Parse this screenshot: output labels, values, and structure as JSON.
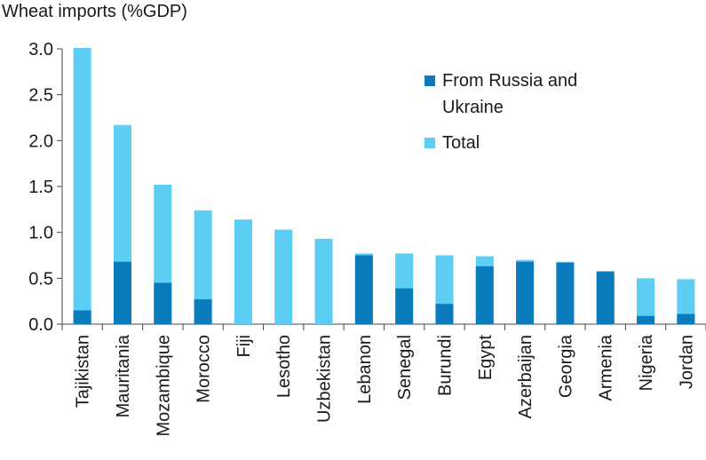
{
  "chart_data": {
    "type": "bar",
    "title": "Wheat imports (%GDP)",
    "categories": [
      "Tajikistan",
      "Mauritania",
      "Mozambique",
      "Morocco",
      "Fiji",
      "Lesotho",
      "Uzbekistan",
      "Lebanon",
      "Senegal",
      "Burundi",
      "Egypt",
      "Azerbaijan",
      "Georgia",
      "Armenia",
      "Nigeria",
      "Jordan"
    ],
    "series": [
      {
        "name": "From Russia and Ukraine",
        "color": "#0a7bbd",
        "values": [
          0.15,
          0.68,
          0.45,
          0.27,
          0.0,
          0.0,
          0.0,
          0.75,
          0.39,
          0.22,
          0.63,
          0.68,
          0.67,
          0.57,
          0.09,
          0.11
        ]
      },
      {
        "name": "Total",
        "color": "#5ccdf3",
        "values": [
          3.01,
          2.17,
          1.52,
          1.24,
          1.14,
          1.03,
          0.93,
          0.77,
          0.77,
          0.75,
          0.74,
          0.7,
          0.68,
          0.58,
          0.5,
          0.49
        ]
      }
    ],
    "ylim": [
      0,
      3.0
    ],
    "yticks": [
      "0.0",
      "0.5",
      "1.0",
      "1.5",
      "2.0",
      "2.5",
      "3.0"
    ],
    "legend_position": "top-right",
    "grid": false
  }
}
